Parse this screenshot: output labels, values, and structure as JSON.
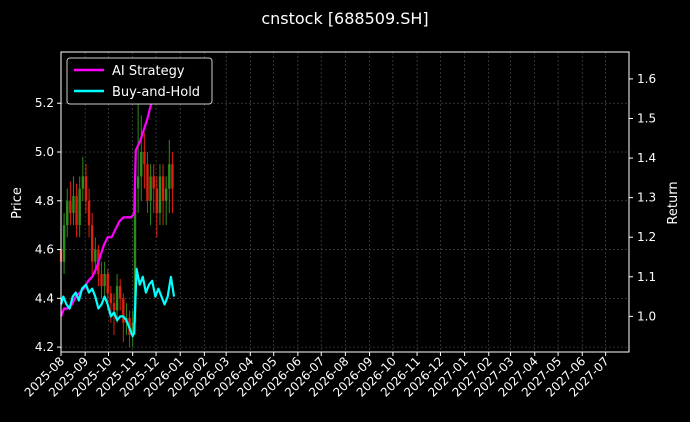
{
  "chart_data": {
    "type": "line",
    "title": "cnstock [688509.SH]",
    "ylabel_left": "Price",
    "ylabel_right": "Return",
    "xlabel": "",
    "y_left_ticks": [
      "4.2",
      "4.4",
      "4.6",
      "4.8",
      "5.0",
      "5.2"
    ],
    "y_left_lim": [
      4.18,
      5.41
    ],
    "y_right_ticks": [
      "1.0",
      "1.1",
      "1.2",
      "1.3",
      "1.4",
      "1.5",
      "1.6"
    ],
    "y_right_lim": [
      0.91,
      1.668
    ],
    "x_start": "2025-08-01",
    "x_end": "2027-07-31",
    "x_ticks": [
      "2025-08",
      "2025-09",
      "2025-10",
      "2025-11",
      "2025-12",
      "2026-01",
      "2026-02",
      "2026-03",
      "2026-04",
      "2026-05",
      "2026-06",
      "2026-07",
      "2026-08",
      "2026-09",
      "2026-10",
      "2026-11",
      "2026-12",
      "2027-01",
      "2027-02",
      "2027-03",
      "2027-04",
      "2027-05",
      "2027-06",
      "2027-07"
    ],
    "grid": true,
    "legend_position": "top-left",
    "colors": {
      "background": "#000000",
      "axes": "#ffffff",
      "grid": "#555555",
      "candle_up": "#2e8b1e",
      "candle_down": "#e0200f",
      "ai_strategy": "#ff00ff",
      "buy_and_hold": "#00ffff"
    },
    "series": [
      {
        "name": "AI Strategy",
        "axis": "right",
        "x": [
          "2025-08-01",
          "2025-08-05",
          "2025-08-10",
          "2025-08-15",
          "2025-08-20",
          "2025-08-25",
          "2025-08-30",
          "2025-09-05",
          "2025-09-10",
          "2025-09-15",
          "2025-09-20",
          "2025-09-25",
          "2025-09-30",
          "2025-10-05",
          "2025-10-10",
          "2025-10-15",
          "2025-10-20",
          "2025-10-25",
          "2025-10-30",
          "2025-11-03",
          "2025-11-05",
          "2025-11-10",
          "2025-11-15",
          "2025-11-20",
          "2025-11-25",
          "2025-11-30",
          "2025-12-03"
        ],
        "y": [
          1.0,
          1.02,
          1.02,
          1.03,
          1.05,
          1.06,
          1.07,
          1.09,
          1.1,
          1.12,
          1.15,
          1.18,
          1.2,
          1.2,
          1.22,
          1.24,
          1.25,
          1.25,
          1.25,
          1.26,
          1.42,
          1.44,
          1.47,
          1.5,
          1.54,
          1.56,
          1.57
        ]
      },
      {
        "name": "Buy-and-Hold",
        "axis": "right",
        "x": [
          "2025-08-01",
          "2025-08-04",
          "2025-08-08",
          "2025-08-12",
          "2025-08-16",
          "2025-08-20",
          "2025-08-24",
          "2025-08-28",
          "2025-09-02",
          "2025-09-06",
          "2025-09-10",
          "2025-09-14",
          "2025-09-18",
          "2025-09-22",
          "2025-09-26",
          "2025-09-30",
          "2025-10-04",
          "2025-10-08",
          "2025-10-12",
          "2025-10-16",
          "2025-10-20",
          "2025-10-24",
          "2025-10-28",
          "2025-11-01",
          "2025-11-03",
          "2025-11-06",
          "2025-11-10",
          "2025-11-14",
          "2025-11-18",
          "2025-11-22",
          "2025-11-26",
          "2025-11-30",
          "2025-12-04",
          "2025-12-08",
          "2025-12-12",
          "2025-12-16",
          "2025-12-20",
          "2025-12-24"
        ],
        "y": [
          1.03,
          1.05,
          1.03,
          1.02,
          1.05,
          1.06,
          1.04,
          1.07,
          1.08,
          1.06,
          1.07,
          1.05,
          1.02,
          1.03,
          1.05,
          1.03,
          1.0,
          1.01,
          0.99,
          1.0,
          1.0,
          0.99,
          0.97,
          0.95,
          0.96,
          1.12,
          1.08,
          1.1,
          1.06,
          1.08,
          1.09,
          1.05,
          1.07,
          1.05,
          1.03,
          1.05,
          1.1,
          1.05
        ]
      }
    ],
    "candles": {
      "axis": "left",
      "x": [
        "2025-08-01",
        "2025-08-05",
        "2025-08-09",
        "2025-08-13",
        "2025-08-17",
        "2025-08-21",
        "2025-08-25",
        "2025-08-29",
        "2025-09-02",
        "2025-09-06",
        "2025-09-10",
        "2025-09-14",
        "2025-09-18",
        "2025-09-22",
        "2025-09-26",
        "2025-09-30",
        "2025-10-04",
        "2025-10-08",
        "2025-10-12",
        "2025-10-16",
        "2025-10-20",
        "2025-10-24",
        "2025-10-28",
        "2025-11-01",
        "2025-11-04",
        "2025-11-08",
        "2025-11-12",
        "2025-11-16",
        "2025-11-20",
        "2025-11-24",
        "2025-11-28",
        "2025-12-02",
        "2025-12-06",
        "2025-12-10",
        "2025-12-14",
        "2025-12-18",
        "2025-12-22"
      ],
      "open": [
        4.6,
        4.55,
        4.7,
        4.8,
        4.75,
        4.82,
        4.7,
        4.85,
        4.9,
        4.8,
        4.7,
        4.55,
        4.6,
        4.5,
        4.45,
        4.5,
        4.42,
        4.38,
        4.35,
        4.45,
        4.4,
        4.3,
        4.32,
        4.25,
        4.3,
        4.85,
        4.9,
        5.0,
        4.95,
        4.8,
        4.9,
        4.85,
        4.75,
        4.9,
        4.8,
        4.85,
        4.95
      ],
      "close": [
        4.55,
        4.7,
        4.8,
        4.75,
        4.82,
        4.7,
        4.85,
        4.9,
        4.8,
        4.7,
        4.55,
        4.6,
        4.5,
        4.45,
        4.5,
        4.42,
        4.38,
        4.35,
        4.45,
        4.4,
        4.3,
        4.32,
        4.25,
        4.3,
        4.85,
        4.9,
        5.0,
        4.95,
        4.8,
        4.9,
        4.85,
        4.75,
        4.9,
        4.8,
        4.85,
        4.95,
        4.85
      ],
      "high": [
        4.7,
        4.75,
        4.85,
        4.88,
        4.9,
        4.87,
        4.9,
        4.98,
        4.95,
        4.85,
        4.75,
        4.65,
        4.62,
        4.55,
        4.55,
        4.52,
        4.45,
        4.42,
        4.5,
        4.48,
        4.42,
        4.38,
        4.35,
        4.35,
        4.95,
        5.2,
        5.15,
        5.08,
        5.0,
        4.95,
        4.95,
        4.9,
        4.95,
        4.95,
        4.9,
        5.05,
        5.0
      ],
      "low": [
        4.45,
        4.5,
        4.65,
        4.7,
        4.7,
        4.65,
        4.65,
        4.8,
        4.75,
        4.65,
        4.5,
        4.5,
        4.45,
        4.4,
        4.4,
        4.35,
        4.3,
        4.25,
        4.3,
        4.35,
        4.22,
        4.25,
        4.2,
        4.2,
        4.25,
        4.75,
        4.8,
        4.85,
        4.75,
        4.7,
        4.75,
        4.65,
        4.7,
        4.7,
        4.7,
        4.75,
        4.75
      ]
    }
  }
}
